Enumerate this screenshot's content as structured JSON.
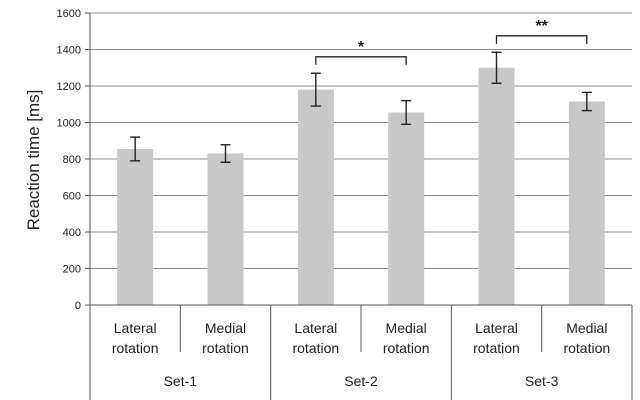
{
  "chart_data": {
    "type": "bar",
    "title": "",
    "xlabel": "",
    "ylabel": "Reaction time [ms]",
    "ylim": [
      0,
      1600
    ],
    "yticks": [
      0,
      200,
      400,
      600,
      800,
      1000,
      1200,
      1400,
      1600
    ],
    "grid": true,
    "bar_color": "#c8c8c8",
    "groups": [
      {
        "label": "Set-1",
        "bars": [
          {
            "label_line1": "Lateral",
            "label_line2": "rotation",
            "value": 855,
            "error": 65
          },
          {
            "label_line1": "Medial",
            "label_line2": "rotation",
            "value": 830,
            "error": 48
          }
        ]
      },
      {
        "label": "Set-2",
        "bars": [
          {
            "label_line1": "Lateral",
            "label_line2": "rotation",
            "value": 1180,
            "error": 90
          },
          {
            "label_line1": "Medial",
            "label_line2": "rotation",
            "value": 1055,
            "error": 65
          }
        ]
      },
      {
        "label": "Set-3",
        "bars": [
          {
            "label_line1": "Lateral",
            "label_line2": "rotation",
            "value": 1300,
            "error": 85
          },
          {
            "label_line1": "Medial",
            "label_line2": "rotation",
            "value": 1115,
            "error": 50
          }
        ]
      }
    ],
    "significance": [
      {
        "group": 1,
        "symbol": "*"
      },
      {
        "group": 2,
        "symbol": "**"
      }
    ]
  }
}
